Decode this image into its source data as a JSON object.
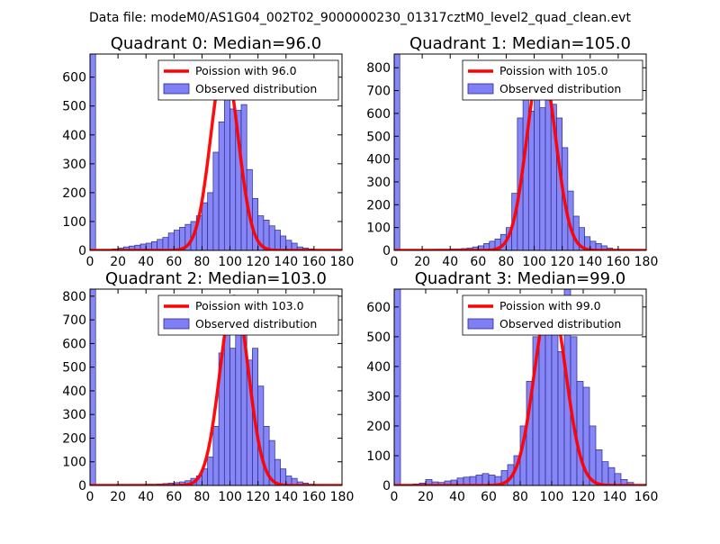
{
  "suptitle": "Data file: modeM0/AS1G04_002T02_9000000230_01317cztM0_level2_quad_clean.evt",
  "colors": {
    "poisson": "#ff0000",
    "hist_fill": "#7f7ff5",
    "hist_edge": "#2a2a8a",
    "axis": "#000000"
  },
  "chart_data": [
    {
      "type": "bar",
      "title": "Quadrant 0: Median=96.0",
      "legend": [
        "Poission with 96.0",
        "Observed distribution"
      ],
      "legend_loc": "top-right",
      "xlim": [
        0,
        180
      ],
      "ylim": [
        0,
        680
      ],
      "xticks": [
        0,
        20,
        40,
        60,
        80,
        100,
        120,
        140,
        160,
        180
      ],
      "yticks": [
        0,
        100,
        200,
        300,
        400,
        500,
        600
      ],
      "bin_edges": [
        0,
        4,
        8,
        12,
        16,
        20,
        24,
        28,
        32,
        36,
        40,
        44,
        48,
        52,
        56,
        60,
        64,
        68,
        72,
        76,
        80,
        84,
        88,
        92,
        96,
        100,
        104,
        108,
        112,
        116,
        120,
        124,
        128,
        132,
        136,
        140,
        144,
        148,
        152,
        156,
        160,
        164
      ],
      "counts": [
        680,
        2,
        2,
        3,
        5,
        8,
        12,
        15,
        18,
        22,
        25,
        30,
        38,
        45,
        60,
        70,
        80,
        90,
        100,
        120,
        165,
        200,
        340,
        445,
        535,
        490,
        485,
        505,
        280,
        180,
        120,
        105,
        85,
        70,
        50,
        35,
        25,
        12,
        8,
        5,
        3
      ],
      "poisson_mu": 96.0,
      "poisson_peak": 650
    },
    {
      "type": "bar",
      "title": "Quadrant 1: Median=105.0",
      "legend": [
        "Poission with 105.0",
        "Observed distribution"
      ],
      "legend_loc": "top-right",
      "xlim": [
        0,
        180
      ],
      "ylim": [
        0,
        860
      ],
      "xticks": [
        0,
        20,
        40,
        60,
        80,
        100,
        120,
        140,
        160,
        180
      ],
      "yticks": [
        0,
        100,
        200,
        300,
        400,
        500,
        600,
        700,
        800
      ],
      "bin_edges": [
        0,
        4,
        8,
        12,
        16,
        20,
        24,
        28,
        32,
        36,
        40,
        44,
        48,
        52,
        56,
        60,
        64,
        68,
        72,
        76,
        80,
        84,
        88,
        92,
        96,
        100,
        104,
        108,
        112,
        116,
        120,
        124,
        128,
        132,
        136,
        140,
        144,
        148,
        152,
        156,
        160,
        164,
        168,
        172
      ],
      "counts": [
        860,
        2,
        2,
        2,
        3,
        3,
        4,
        5,
        5,
        5,
        6,
        6,
        8,
        10,
        15,
        20,
        30,
        40,
        50,
        70,
        100,
        250,
        580,
        700,
        610,
        795,
        625,
        800,
        640,
        580,
        450,
        260,
        150,
        100,
        60,
        40,
        30,
        20,
        10,
        5,
        4,
        3,
        2
      ],
      "poisson_mu": 105.0,
      "poisson_peak": 820
    },
    {
      "type": "bar",
      "title": "Quadrant 2: Median=103.0",
      "legend": [
        "Poission with 103.0",
        "Observed distribution"
      ],
      "legend_loc": "top-right",
      "xlim": [
        0,
        180
      ],
      "ylim": [
        0,
        830
      ],
      "xticks": [
        0,
        20,
        40,
        60,
        80,
        100,
        120,
        140,
        160,
        180
      ],
      "yticks": [
        0,
        100,
        200,
        300,
        400,
        500,
        600,
        700,
        800
      ],
      "bin_edges": [
        0,
        4,
        8,
        12,
        16,
        20,
        24,
        28,
        32,
        36,
        40,
        44,
        48,
        52,
        56,
        60,
        64,
        68,
        72,
        76,
        80,
        84,
        88,
        92,
        96,
        100,
        104,
        108,
        112,
        116,
        120,
        124,
        128,
        132,
        136,
        140,
        144,
        148,
        152,
        156,
        160,
        164
      ],
      "counts": [
        830,
        2,
        2,
        2,
        3,
        3,
        3,
        4,
        4,
        4,
        5,
        5,
        6,
        8,
        10,
        12,
        15,
        20,
        30,
        40,
        70,
        120,
        250,
        560,
        680,
        580,
        640,
        800,
        530,
        580,
        420,
        250,
        190,
        110,
        70,
        40,
        30,
        15,
        10,
        5,
        3
      ],
      "poisson_mu": 103.0,
      "poisson_peak": 800
    },
    {
      "type": "bar",
      "title": "Quadrant 3: Median=99.0",
      "legend": [
        "Poission with 99.0",
        "Observed distribution"
      ],
      "legend_loc": "top-right",
      "xlim": [
        0,
        160
      ],
      "ylim": [
        0,
        660
      ],
      "xticks": [
        0,
        20,
        40,
        60,
        80,
        100,
        120,
        140,
        160
      ],
      "yticks": [
        0,
        100,
        200,
        300,
        400,
        500,
        600
      ],
      "bin_edges": [
        0,
        4,
        8,
        12,
        16,
        20,
        24,
        28,
        32,
        36,
        40,
        44,
        48,
        52,
        56,
        60,
        64,
        68,
        72,
        76,
        80,
        84,
        88,
        92,
        96,
        100,
        104,
        108,
        112,
        116,
        120,
        124,
        128,
        132,
        136,
        140,
        144,
        148,
        152
      ],
      "counts": [
        660,
        3,
        3,
        5,
        8,
        20,
        12,
        10,
        15,
        18,
        25,
        28,
        30,
        35,
        40,
        35,
        30,
        50,
        70,
        100,
        200,
        350,
        500,
        580,
        610,
        520,
        450,
        680,
        500,
        350,
        330,
        200,
        120,
        80,
        60,
        40,
        20,
        10
      ],
      "poisson_mu": 99.0,
      "poisson_peak": 630
    }
  ]
}
